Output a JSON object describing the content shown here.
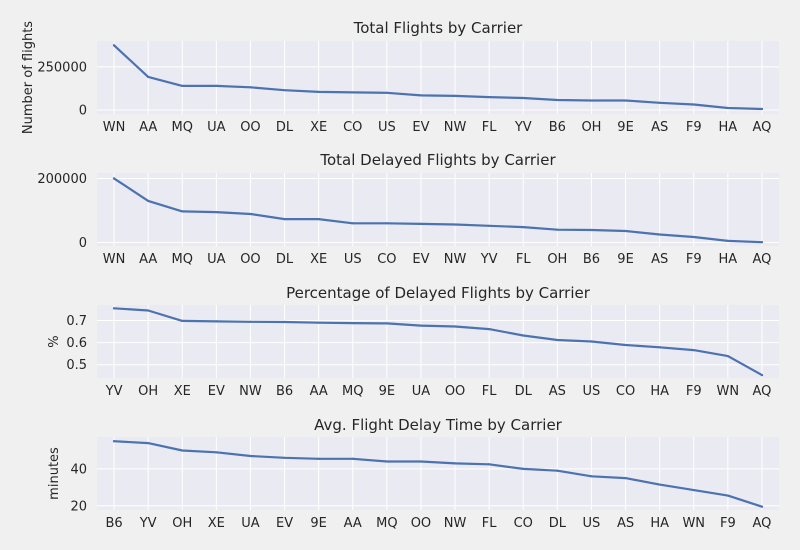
{
  "colors": {
    "figure_background": "#f0f0f0",
    "axes_background": "#eaeaf2",
    "grid": "#ffffff",
    "line": "#4c72b0",
    "text": "#262626"
  },
  "chart_data": [
    {
      "type": "line",
      "title": "Total Flights by Carrier",
      "xlabel": "",
      "ylabel": "Number of flights",
      "grid": true,
      "categories": [
        "WN",
        "AA",
        "MQ",
        "UA",
        "OO",
        "DL",
        "XE",
        "CO",
        "US",
        "EV",
        "NW",
        "FL",
        "YV",
        "B6",
        "OH",
        "9E",
        "AS",
        "F9",
        "HA",
        "AQ"
      ],
      "values": [
        375000,
        192000,
        140000,
        140000,
        132000,
        115000,
        105000,
        102000,
        100000,
        85000,
        82000,
        75000,
        70000,
        58000,
        55000,
        55000,
        42000,
        32000,
        12000,
        6000
      ],
      "yticks": [
        0,
        250000
      ],
      "ylim": [
        -23000,
        400000
      ]
    },
    {
      "type": "line",
      "title": "Total Delayed Flights by Carrier",
      "xlabel": "",
      "ylabel": "",
      "grid": true,
      "categories": [
        "WN",
        "AA",
        "MQ",
        "UA",
        "OO",
        "DL",
        "XE",
        "US",
        "CO",
        "EV",
        "NW",
        "YV",
        "FL",
        "OH",
        "B6",
        "9E",
        "AS",
        "F9",
        "HA",
        "AQ"
      ],
      "values": [
        200000,
        130000,
        97000,
        95000,
        89000,
        73000,
        73000,
        60000,
        60000,
        58000,
        56000,
        52000,
        48000,
        40000,
        39000,
        36000,
        25000,
        17000,
        5000,
        1000
      ],
      "yticks": [
        0,
        200000
      ],
      "ylim": [
        -11000,
        217000
      ]
    },
    {
      "type": "line",
      "title": "Percentage of Delayed Flights by Carrier",
      "xlabel": "",
      "ylabel": "%",
      "grid": true,
      "categories": [
        "YV",
        "OH",
        "XE",
        "EV",
        "NW",
        "B6",
        "AA",
        "MQ",
        "9E",
        "UA",
        "OO",
        "FL",
        "DL",
        "AS",
        "US",
        "CO",
        "HA",
        "F9",
        "WN",
        "AQ"
      ],
      "values": [
        0.755,
        0.745,
        0.698,
        0.696,
        0.694,
        0.693,
        0.69,
        0.688,
        0.687,
        0.677,
        0.673,
        0.661,
        0.632,
        0.612,
        0.605,
        0.589,
        0.579,
        0.566,
        0.539,
        0.453
      ],
      "yticks": [
        0.5,
        0.6,
        0.7
      ],
      "ylim": [
        0.44,
        0.77
      ]
    },
    {
      "type": "line",
      "title": "Avg. Flight Delay Time by Carrier",
      "xlabel": "",
      "ylabel": "minutes",
      "grid": true,
      "categories": [
        "B6",
        "YV",
        "OH",
        "XE",
        "UA",
        "EV",
        "9E",
        "AA",
        "MQ",
        "OO",
        "NW",
        "FL",
        "CO",
        "DL",
        "US",
        "AS",
        "HA",
        "WN",
        "F9",
        "AQ"
      ],
      "values": [
        55,
        54,
        50,
        49,
        47,
        46,
        45.5,
        45.5,
        44,
        44,
        43,
        42.5,
        40,
        39,
        36,
        35,
        31.5,
        28.5,
        25.5,
        19.5
      ],
      "yticks": [
        20,
        40
      ],
      "ylim": [
        17.7,
        57.3
      ]
    }
  ]
}
